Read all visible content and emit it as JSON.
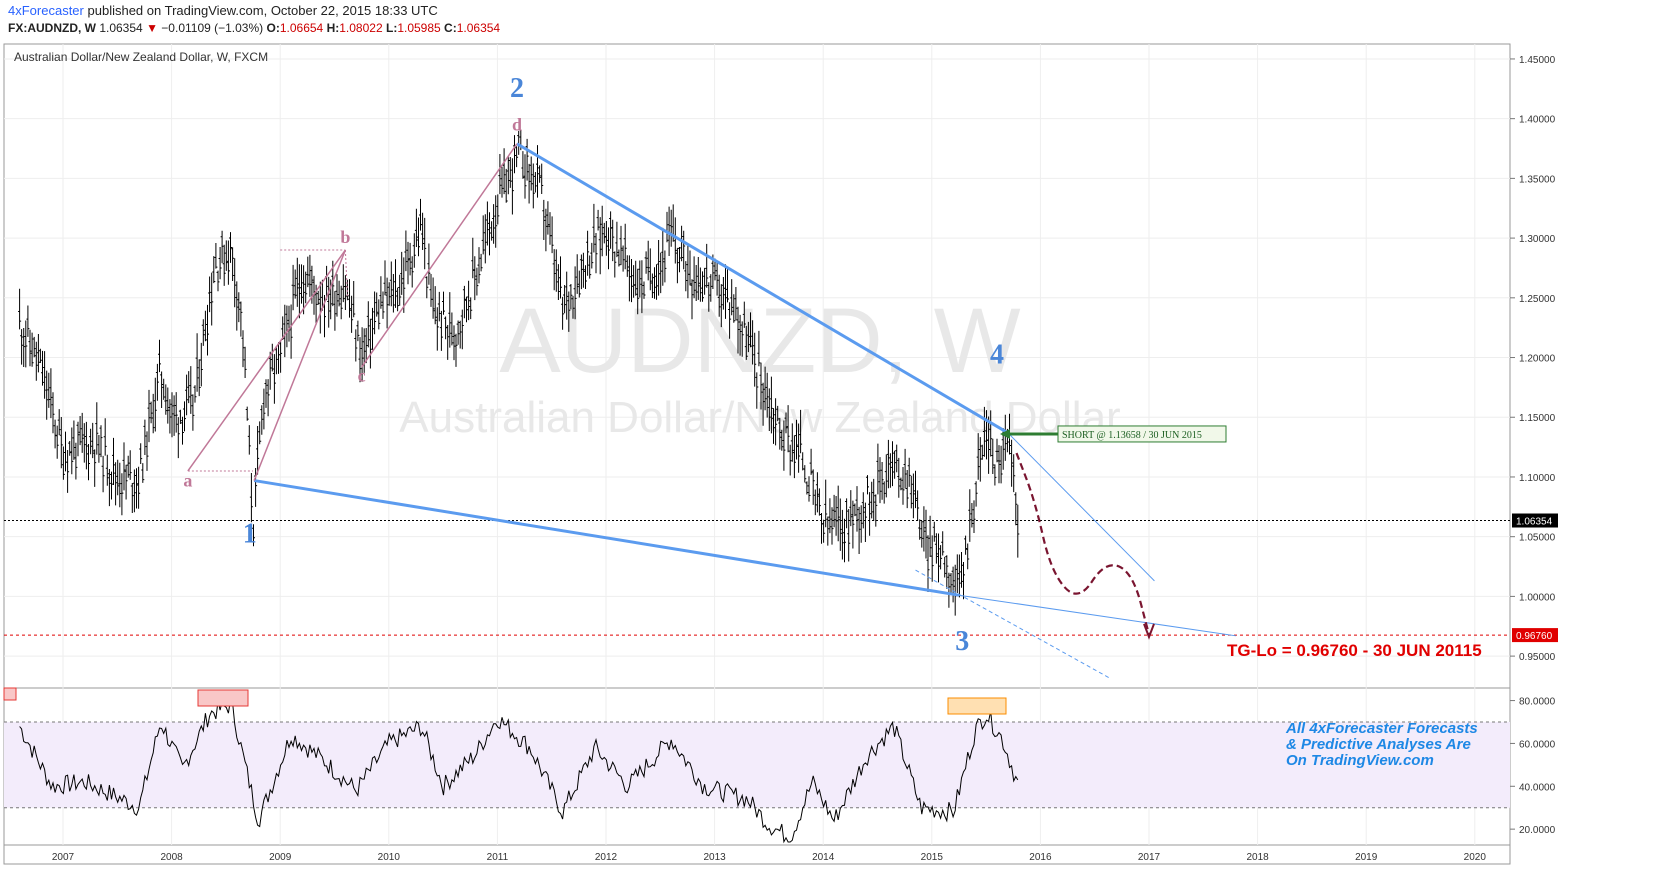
{
  "header": {
    "brand": "4xForecaster",
    "published": "published on TradingView.com, October 22, 2015 18:33 UTC",
    "symbol": "FX:AUDNZD, W",
    "last": "1.06354",
    "change": "−0.01109 (−1.03%)",
    "o_label": "O:",
    "o_value": "1.06654",
    "h_label": "H:",
    "h_value": "1.08022",
    "l_label": "L:",
    "l_value": "1.05985",
    "c_label": "C:",
    "c_value": "1.06354"
  },
  "colors": {
    "bars": "#000000",
    "wave_labels": "#4a86d8",
    "sub_wave_labels": "#c07898",
    "trendline": "#5b9bef",
    "target": "#e00000",
    "forecast_path": "#7a1530",
    "short_arrow": "#2e7d32",
    "rsi_band": "#f3ecfb"
  },
  "chart_data": [
    {
      "type": "ohlc",
      "title": "Australian Dollar/New Zealand Dollar, W, FXCM",
      "watermark_symbol": "AUDNZD, W",
      "watermark_name": "Australian Dollar/New Zealand Dollar",
      "x_ticks": [
        "2007",
        "2008",
        "2009",
        "2010",
        "2011",
        "2012",
        "2013",
        "2014",
        "2015",
        "2016",
        "2017",
        "2018",
        "2019",
        "2020"
      ],
      "y_ticks": [
        "1.45000",
        "1.40000",
        "1.35000",
        "1.30000",
        "1.25000",
        "1.20000",
        "1.15000",
        "1.10000",
        "1.05000",
        "1.00000",
        "0.95000"
      ],
      "ylim": [
        0.93,
        1.46
      ],
      "last_price": 1.06354,
      "last_price_label": "1.06354",
      "target_price": 0.9676,
      "target_price_label": "0.96760",
      "price_path": [
        {
          "t": 2006.6,
          "p": 1.23
        },
        {
          "t": 2006.8,
          "p": 1.19
        },
        {
          "t": 2007.0,
          "p": 1.12
        },
        {
          "t": 2007.3,
          "p": 1.13
        },
        {
          "t": 2007.5,
          "p": 1.1
        },
        {
          "t": 2007.7,
          "p": 1.1
        },
        {
          "t": 2007.9,
          "p": 1.19
        },
        {
          "t": 2008.0,
          "p": 1.15
        },
        {
          "t": 2008.2,
          "p": 1.16
        },
        {
          "t": 2008.4,
          "p": 1.28
        },
        {
          "t": 2008.55,
          "p": 1.29
        },
        {
          "t": 2008.65,
          "p": 1.23
        },
        {
          "t": 2008.75,
          "p": 1.06
        },
        {
          "t": 2008.85,
          "p": 1.17
        },
        {
          "t": 2009.0,
          "p": 1.2
        },
        {
          "t": 2009.2,
          "p": 1.27
        },
        {
          "t": 2009.4,
          "p": 1.25
        },
        {
          "t": 2009.6,
          "p": 1.26
        },
        {
          "t": 2009.75,
          "p": 1.2
        },
        {
          "t": 2009.9,
          "p": 1.24
        },
        {
          "t": 2010.1,
          "p": 1.26
        },
        {
          "t": 2010.3,
          "p": 1.31
        },
        {
          "t": 2010.4,
          "p": 1.24
        },
        {
          "t": 2010.6,
          "p": 1.22
        },
        {
          "t": 2010.8,
          "p": 1.27
        },
        {
          "t": 2011.0,
          "p": 1.33
        },
        {
          "t": 2011.2,
          "p": 1.37
        },
        {
          "t": 2011.4,
          "p": 1.34
        },
        {
          "t": 2011.6,
          "p": 1.24
        },
        {
          "t": 2011.8,
          "p": 1.28
        },
        {
          "t": 2012.0,
          "p": 1.31
        },
        {
          "t": 2012.3,
          "p": 1.26
        },
        {
          "t": 2012.5,
          "p": 1.28
        },
        {
          "t": 2012.6,
          "p": 1.3
        },
        {
          "t": 2012.8,
          "p": 1.27
        },
        {
          "t": 2013.0,
          "p": 1.26
        },
        {
          "t": 2013.2,
          "p": 1.24
        },
        {
          "t": 2013.4,
          "p": 1.19
        },
        {
          "t": 2013.6,
          "p": 1.14
        },
        {
          "t": 2013.8,
          "p": 1.12
        },
        {
          "t": 2014.0,
          "p": 1.06
        },
        {
          "t": 2014.2,
          "p": 1.06
        },
        {
          "t": 2014.4,
          "p": 1.08
        },
        {
          "t": 2014.6,
          "p": 1.11
        },
        {
          "t": 2014.8,
          "p": 1.1
        },
        {
          "t": 2014.95,
          "p": 1.04
        },
        {
          "t": 2015.1,
          "p": 1.04
        },
        {
          "t": 2015.25,
          "p": 1.0
        },
        {
          "t": 2015.4,
          "p": 1.09
        },
        {
          "t": 2015.5,
          "p": 1.14
        },
        {
          "t": 2015.6,
          "p": 1.11
        },
        {
          "t": 2015.7,
          "p": 1.13
        },
        {
          "t": 2015.8,
          "p": 1.063
        }
      ],
      "wave_labels": [
        {
          "label": "1",
          "t": 2008.72,
          "p": 1.045
        },
        {
          "label": "2",
          "t": 2011.18,
          "p": 1.418
        },
        {
          "label": "3",
          "t": 2015.28,
          "p": 0.955
        },
        {
          "label": "4",
          "t": 2015.6,
          "p": 1.195
        }
      ],
      "sub_wave_labels": [
        {
          "label": "a",
          "t": 2008.15,
          "p": 1.092
        },
        {
          "label": "b",
          "t": 2009.6,
          "p": 1.296
        },
        {
          "label": "c",
          "t": 2009.75,
          "p": 1.18
        },
        {
          "label": "d",
          "t": 2011.18,
          "p": 1.39
        }
      ],
      "annotations": {
        "short": "SHORT @ 1.13658 / 30 JUN 2015",
        "target": "TG-Lo = 0.96760 - 30 JUN 20115"
      },
      "forecast_path": [
        {
          "t": 2015.78,
          "p": 1.12
        },
        {
          "t": 2015.95,
          "p": 1.08
        },
        {
          "t": 2016.1,
          "p": 1.02
        },
        {
          "t": 2016.35,
          "p": 0.995
        },
        {
          "t": 2016.6,
          "p": 1.03
        },
        {
          "t": 2016.85,
          "p": 1.02
        },
        {
          "t": 2017.0,
          "p": 0.968
        }
      ]
    },
    {
      "type": "line",
      "name_hidden": true,
      "y_ticks": [
        "80.0000",
        "60.0000",
        "40.0000",
        "20.0000"
      ],
      "ylim": [
        14,
        84
      ],
      "upper_band": 70,
      "lower_band": 30,
      "series": [
        {
          "t": 2006.6,
          "v": 68
        },
        {
          "t": 2006.9,
          "v": 40
        },
        {
          "t": 2007.2,
          "v": 42
        },
        {
          "t": 2007.5,
          "v": 35
        },
        {
          "t": 2007.7,
          "v": 30
        },
        {
          "t": 2007.9,
          "v": 70
        },
        {
          "t": 2008.1,
          "v": 48
        },
        {
          "t": 2008.35,
          "v": 74
        },
        {
          "t": 2008.55,
          "v": 78
        },
        {
          "t": 2008.7,
          "v": 45
        },
        {
          "t": 2008.8,
          "v": 24
        },
        {
          "t": 2009.1,
          "v": 64
        },
        {
          "t": 2009.4,
          "v": 52
        },
        {
          "t": 2009.7,
          "v": 38
        },
        {
          "t": 2010.0,
          "v": 60
        },
        {
          "t": 2010.3,
          "v": 68
        },
        {
          "t": 2010.5,
          "v": 40
        },
        {
          "t": 2010.8,
          "v": 55
        },
        {
          "t": 2011.0,
          "v": 72
        },
        {
          "t": 2011.3,
          "v": 58
        },
        {
          "t": 2011.6,
          "v": 28
        },
        {
          "t": 2011.9,
          "v": 58
        },
        {
          "t": 2012.2,
          "v": 40
        },
        {
          "t": 2012.6,
          "v": 62
        },
        {
          "t": 2012.9,
          "v": 40
        },
        {
          "t": 2013.3,
          "v": 34
        },
        {
          "t": 2013.5,
          "v": 22
        },
        {
          "t": 2013.7,
          "v": 16
        },
        {
          "t": 2013.9,
          "v": 42
        },
        {
          "t": 2014.1,
          "v": 24
        },
        {
          "t": 2014.4,
          "v": 54
        },
        {
          "t": 2014.65,
          "v": 68
        },
        {
          "t": 2014.9,
          "v": 30
        },
        {
          "t": 2015.2,
          "v": 28
        },
        {
          "t": 2015.4,
          "v": 66
        },
        {
          "t": 2015.5,
          "v": 74
        },
        {
          "t": 2015.65,
          "v": 62
        },
        {
          "t": 2015.8,
          "v": 40
        }
      ]
    }
  ],
  "promo": {
    "line1": "All 4xForecaster Forecasts",
    "line2": "& Predictive Analyses Are",
    "line3": "On TradingView.com"
  }
}
